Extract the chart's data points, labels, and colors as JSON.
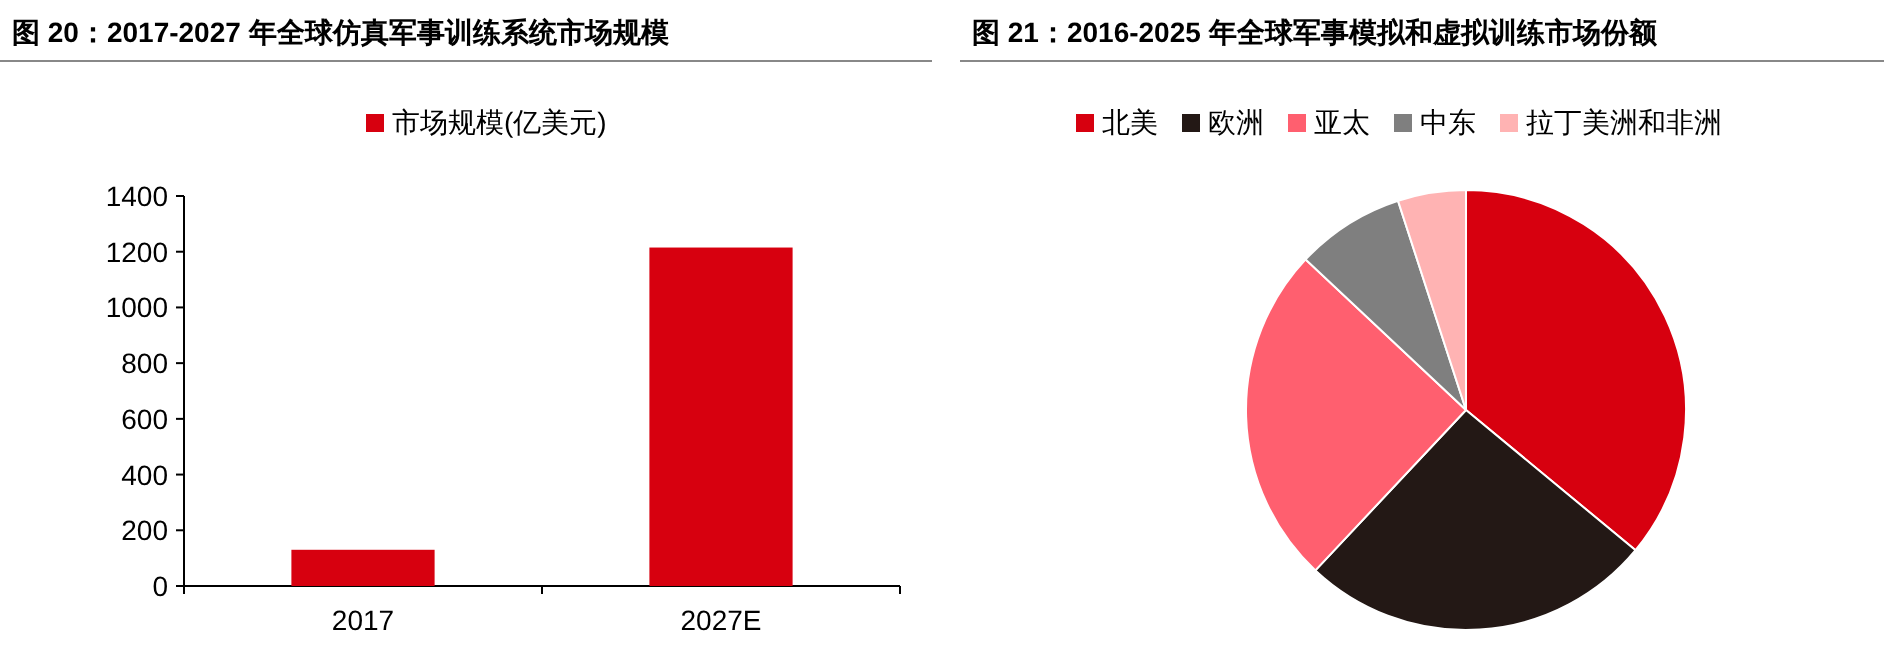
{
  "chart_data": [
    {
      "type": "bar",
      "title": "图 20：2017-2027 年全球仿真军事训练系统市场规模",
      "categories": [
        "2017",
        "2027E"
      ],
      "series": [
        {
          "name": "市场规模(亿美元)",
          "color": "#d7000f",
          "values": [
            130,
            1215
          ]
        }
      ],
      "ylim": [
        0,
        1400
      ],
      "yticks": [
        0,
        200,
        400,
        600,
        800,
        1000,
        1200,
        1400
      ],
      "grid": false,
      "legend": "top"
    },
    {
      "type": "pie",
      "title": "图 21：2016-2025 年全球军事模拟和虚拟训练市场份额",
      "categories": [
        "北美",
        "欧洲",
        "亚太",
        "中东",
        "拉丁美洲和非洲"
      ],
      "values": [
        36,
        26,
        25,
        8,
        5
      ],
      "colors": [
        "#d7000f",
        "#231815",
        "#ff5f6f",
        "#7f7f7f",
        "#ffb3b3"
      ],
      "legend": "top"
    }
  ]
}
